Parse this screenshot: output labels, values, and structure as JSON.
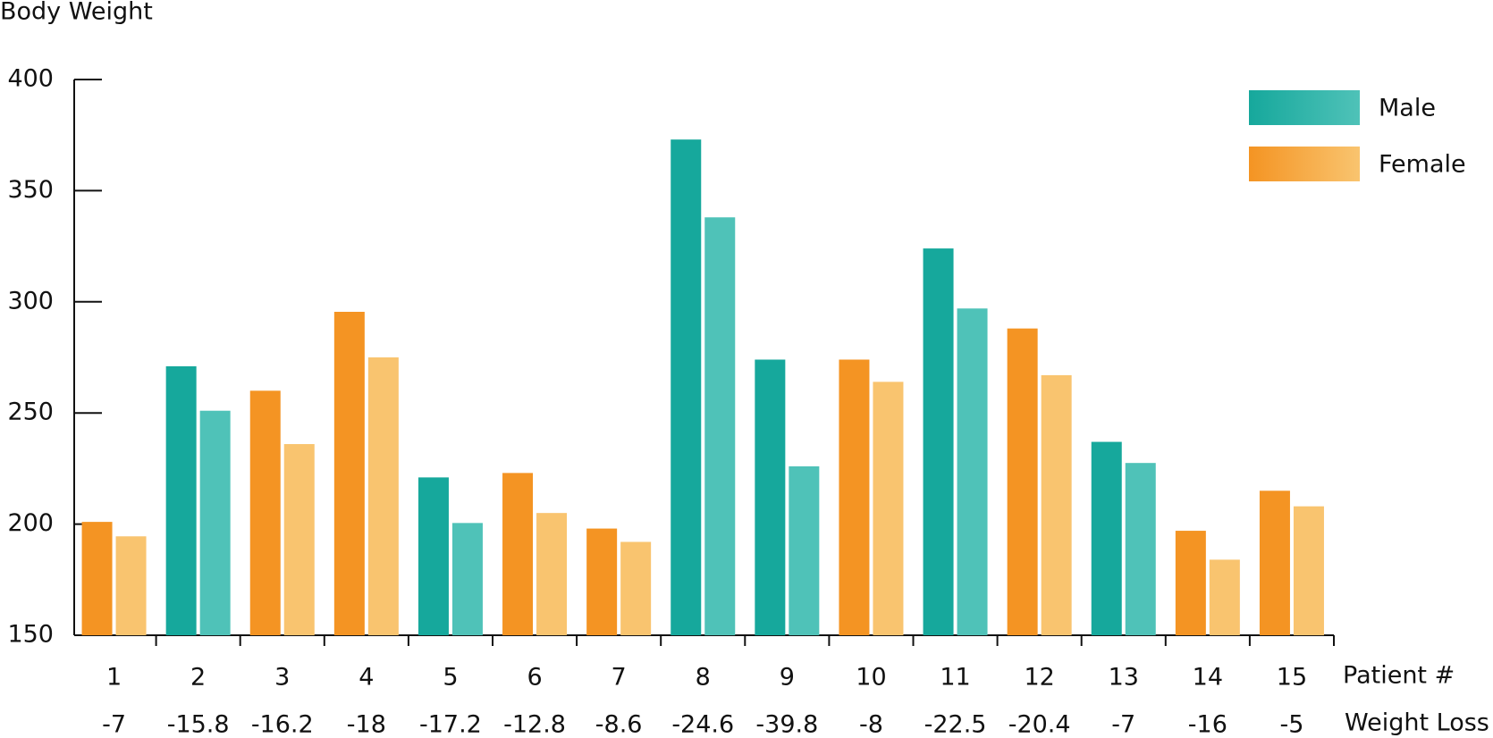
{
  "chart_data": {
    "type": "bar",
    "title": "Body Weight",
    "x_label": "Patient #",
    "categories": [
      "1",
      "2",
      "3",
      "4",
      "5",
      "6",
      "7",
      "8",
      "9",
      "10",
      "11",
      "12",
      "13",
      "14",
      "15"
    ],
    "series": [
      {
        "name": "Male",
        "colors": [
          "#16a89c",
          "#4fc2b8"
        ],
        "before": [
          null,
          271,
          null,
          null,
          221,
          null,
          null,
          373,
          274,
          null,
          324,
          null,
          237,
          null,
          null
        ],
        "after": [
          null,
          251,
          null,
          null,
          200.5,
          null,
          null,
          338,
          226,
          null,
          297,
          null,
          227.5,
          null,
          null
        ]
      },
      {
        "name": "Female",
        "colors": [
          "#f49423",
          "#f9c46f"
        ],
        "before": [
          201,
          null,
          260,
          295.5,
          null,
          223,
          198,
          null,
          null,
          274,
          null,
          288,
          null,
          197,
          215
        ],
        "after": [
          194.5,
          null,
          236,
          275,
          null,
          205,
          192,
          null,
          null,
          264,
          null,
          267,
          null,
          184,
          208
        ]
      }
    ],
    "weight_loss": {
      "label": "Weight Loss",
      "color": "#1a5fa8",
      "values": [
        -7,
        -15.8,
        -16.2,
        -18,
        -17.2,
        -12.8,
        -8.6,
        -24.6,
        -39.8,
        -8,
        -22.5,
        -20.4,
        -7,
        -16,
        -5
      ]
    },
    "ylim": [
      150,
      400
    ],
    "yticks": [
      150,
      200,
      250,
      300,
      350,
      400
    ]
  }
}
